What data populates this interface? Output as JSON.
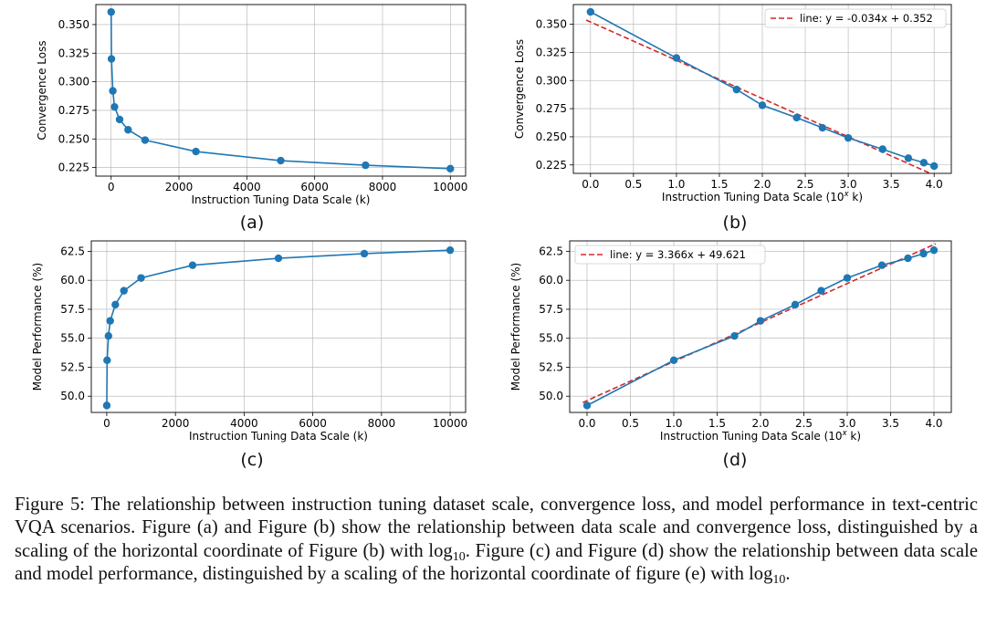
{
  "chart_data": [
    {
      "id": "a",
      "type": "line",
      "sublabel": "(a)",
      "xlabel": "Instruction Tuning Data Scale (k)",
      "ylabel": "Convergence Loss",
      "xlim": [
        -450,
        10450
      ],
      "ylim": [
        0.2175,
        0.3675
      ],
      "xticks": [
        0,
        2000,
        4000,
        6000,
        8000,
        10000
      ],
      "xticklabels": [
        "0",
        "2000",
        "4000",
        "6000",
        "8000",
        "10000"
      ],
      "yticks": [
        0.225,
        0.25,
        0.275,
        0.3,
        0.325,
        0.35
      ],
      "yticklabels": [
        "0.225",
        "0.250",
        "0.275",
        "0.300",
        "0.325",
        "0.350"
      ],
      "grid": true,
      "series": [
        {
          "name": "loss",
          "x": [
            1,
            10,
            50,
            100,
            250,
            500,
            1000,
            2500,
            5000,
            7500,
            10000
          ],
          "y": [
            0.361,
            0.32,
            0.292,
            0.278,
            0.267,
            0.258,
            0.249,
            0.239,
            0.231,
            0.227,
            0.224
          ]
        }
      ]
    },
    {
      "id": "b",
      "type": "line",
      "sublabel": "(b)",
      "xlabel": "Instruction Tuning Data Scale (10^x k)",
      "ylabel": "Convergence Loss",
      "xlim": [
        -0.2,
        4.2
      ],
      "ylim": [
        0.2175,
        0.3675
      ],
      "xticks": [
        0,
        0.5,
        1,
        1.5,
        2,
        2.5,
        3,
        3.5,
        4
      ],
      "xticklabels": [
        "0.0",
        "0.5",
        "1.0",
        "1.5",
        "2.0",
        "2.5",
        "3.0",
        "3.5",
        "4.0"
      ],
      "yticks": [
        0.225,
        0.25,
        0.275,
        0.3,
        0.325,
        0.35
      ],
      "yticklabels": [
        "0.225",
        "0.250",
        "0.275",
        "0.300",
        "0.325",
        "0.350"
      ],
      "grid": true,
      "series": [
        {
          "name": "loss",
          "x": [
            0,
            1,
            1.7,
            2,
            2.4,
            2.7,
            3,
            3.4,
            3.7,
            3.88,
            4
          ],
          "y": [
            0.361,
            0.32,
            0.292,
            0.278,
            0.267,
            0.258,
            0.249,
            0.239,
            0.231,
            0.227,
            0.224
          ]
        }
      ],
      "fit": {
        "slope": -0.034,
        "intercept": 0.352
      },
      "legend": {
        "label": "line: y = -0.034x + 0.352",
        "position": "top-right"
      }
    },
    {
      "id": "c",
      "type": "line",
      "sublabel": "(c)",
      "xlabel": "Instruction Tuning Data Scale (k)",
      "ylabel": "Model Performance (%)",
      "xlim": [
        -450,
        10450
      ],
      "ylim": [
        48.6,
        63.4
      ],
      "xticks": [
        0,
        2000,
        4000,
        6000,
        8000,
        10000
      ],
      "xticklabels": [
        "0",
        "2000",
        "4000",
        "6000",
        "8000",
        "10000"
      ],
      "yticks": [
        50,
        52.5,
        55,
        57.5,
        60,
        62.5
      ],
      "yticklabels": [
        "50.0",
        "52.5",
        "55.0",
        "57.5",
        "60.0",
        "62.5"
      ],
      "grid": true,
      "series": [
        {
          "name": "performance",
          "x": [
            1,
            10,
            50,
            100,
            250,
            500,
            1000,
            2500,
            5000,
            7500,
            10000
          ],
          "y": [
            49.2,
            53.1,
            55.2,
            56.5,
            57.9,
            59.1,
            60.2,
            61.3,
            61.9,
            62.3,
            62.6
          ]
        }
      ]
    },
    {
      "id": "d",
      "type": "line",
      "sublabel": "(d)",
      "xlabel": "Instruction Tuning Data Scale (10^x k)",
      "ylabel": "Model Performance (%)",
      "xlim": [
        -0.2,
        4.2
      ],
      "ylim": [
        48.6,
        63.4
      ],
      "xticks": [
        0,
        0.5,
        1,
        1.5,
        2,
        2.5,
        3,
        3.5,
        4
      ],
      "xticklabels": [
        "0.0",
        "0.5",
        "1.0",
        "1.5",
        "2.0",
        "2.5",
        "3.0",
        "3.5",
        "4.0"
      ],
      "yticks": [
        50,
        52.5,
        55,
        57.5,
        60,
        62.5
      ],
      "yticklabels": [
        "50.0",
        "52.5",
        "55.0",
        "57.5",
        "60.0",
        "62.5"
      ],
      "grid": true,
      "series": [
        {
          "name": "performance",
          "x": [
            0,
            1,
            1.7,
            2,
            2.4,
            2.7,
            3,
            3.4,
            3.7,
            3.88,
            4
          ],
          "y": [
            49.2,
            53.1,
            55.2,
            56.5,
            57.9,
            59.1,
            60.2,
            61.3,
            61.9,
            62.3,
            62.6
          ]
        }
      ],
      "fit": {
        "slope": 3.366,
        "intercept": 49.621
      },
      "legend": {
        "label": "line: y = 3.366x + 49.621",
        "position": "top-left"
      }
    }
  ],
  "colors": {
    "series": "#1f77b4",
    "fit": "#d62728",
    "grid": "#b0b0b0"
  },
  "caption": {
    "figure_label": "Figure 5:",
    "line1": "The relationship between instruction tuning dataset scale, convergence loss, and model",
    "line2": "performance in text-centric VQA scenarios. Figure (a) and Figure (b) show the relationship between",
    "line3": "data scale and convergence loss, distinguished by a scaling of the horizontal coordinate of Figure (b)",
    "with": "with",
    "log": "log",
    "log_base": "10",
    "line4_rest": ". Figure (c) and Figure (d) show the relationship between data scale and model performance,",
    "line5": "distinguished by a scaling of the horizontal coordinate of figure (e) with",
    "end": "."
  }
}
